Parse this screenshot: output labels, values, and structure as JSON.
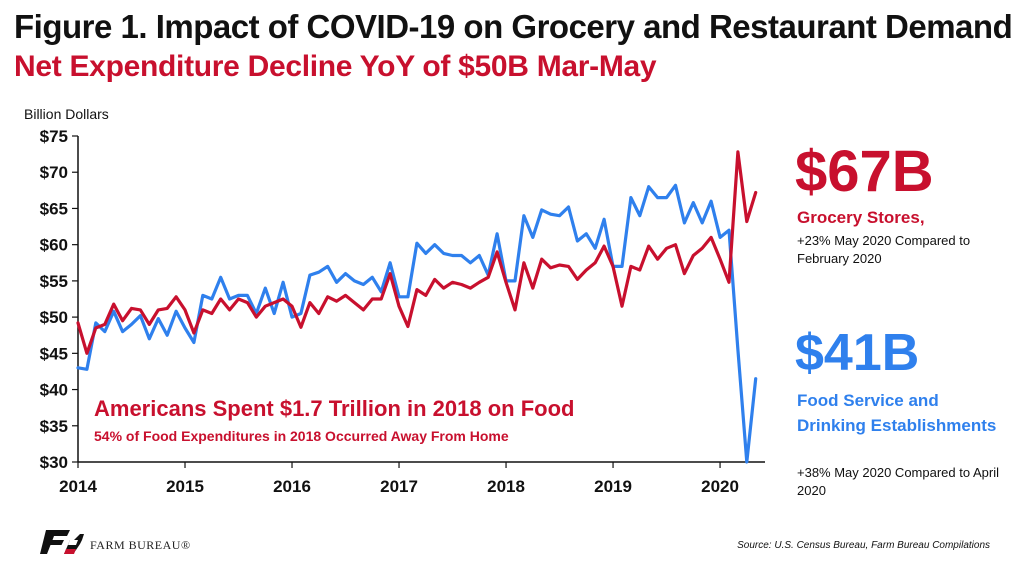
{
  "title": "Figure 1. Impact of COVID-19 on Grocery and Restaurant Demand",
  "subtitle": "Net Expenditure Decline YoY of $50B Mar-May",
  "colors": {
    "grocery": "#c8102e",
    "food_service": "#2f80ed",
    "title": "#111111"
  },
  "chart_data": {
    "type": "line",
    "ylabel": "Billion Dollars",
    "xlabel": "",
    "ylim": [
      30,
      75
    ],
    "yticks": [
      30,
      35,
      40,
      45,
      50,
      55,
      60,
      65,
      70,
      75
    ],
    "ytick_labels": [
      "$30",
      "$35",
      "$40",
      "$45",
      "$50",
      "$55",
      "$60",
      "$65",
      "$70",
      "$75"
    ],
    "xlim": [
      2014,
      2020.42
    ],
    "xticks": [
      2014,
      2015,
      2016,
      2017,
      2018,
      2019,
      2020
    ],
    "xtick_labels": [
      "2014",
      "2015",
      "2016",
      "2017",
      "2018",
      "2019",
      "2020"
    ],
    "grid": false,
    "series": [
      {
        "name": "Grocery Stores",
        "color": "#c8102e",
        "start_year": 2014,
        "points_per_year": 12,
        "values": [
          49.2,
          45.0,
          48.5,
          49.0,
          51.8,
          49.5,
          51.2,
          51.0,
          49.0,
          51.0,
          51.2,
          52.8,
          51.0,
          47.8,
          51.0,
          50.5,
          52.5,
          51.0,
          52.5,
          52.0,
          50.0,
          51.5,
          52.0,
          52.5,
          51.5,
          48.6,
          52.0,
          50.5,
          52.8,
          52.2,
          53.0,
          52.0,
          51.0,
          52.5,
          52.5,
          56.0,
          51.5,
          48.7,
          53.8,
          53.0,
          55.2,
          54.0,
          54.8,
          54.5,
          54.0,
          54.8,
          55.5,
          59.0,
          54.8,
          51.0,
          57.5,
          54.0,
          58.0,
          56.8,
          57.2,
          57.0,
          55.2,
          56.5,
          57.5,
          59.8,
          57.0,
          51.5,
          57.0,
          56.5,
          59.8,
          58.0,
          59.5,
          60.0,
          56.0,
          58.5,
          59.5,
          61.0,
          58.0,
          54.8,
          72.8,
          63.2,
          67.2
        ]
      },
      {
        "name": "Food Service and Drinking Establishments",
        "color": "#2f80ed",
        "start_year": 2014,
        "points_per_year": 12,
        "values": [
          43.0,
          42.8,
          49.2,
          48.0,
          50.8,
          48.0,
          49.0,
          50.2,
          47.0,
          49.8,
          47.5,
          50.8,
          48.5,
          46.5,
          53.0,
          52.5,
          55.5,
          52.5,
          53.0,
          53.0,
          50.5,
          54.0,
          50.5,
          54.8,
          50.0,
          50.5,
          55.8,
          56.2,
          57.0,
          54.8,
          56.0,
          55.0,
          54.5,
          55.5,
          53.5,
          57.5,
          52.8,
          52.8,
          60.2,
          58.8,
          60.0,
          58.8,
          58.5,
          58.5,
          57.5,
          58.5,
          55.8,
          61.5,
          55.0,
          55.0,
          64.0,
          61.0,
          64.8,
          64.2,
          64.0,
          65.2,
          60.5,
          61.5,
          59.5,
          63.5,
          57.0,
          57.0,
          66.5,
          64.0,
          68.0,
          66.5,
          66.5,
          68.2,
          63.0,
          65.8,
          63.0,
          66.0,
          61.0,
          62.0,
          45.5,
          30.0,
          41.5
        ]
      }
    ]
  },
  "annotations": {
    "grocery": {
      "value": "$67B",
      "label": "Grocery Stores,",
      "note": "+23% May 2020 Compared to February 2020"
    },
    "food_service": {
      "value": "$41B",
      "label": "Food Service and Drinking Establishments",
      "note": "+38% May 2020 Compared to April 2020"
    },
    "headline": "Americans Spent $1.7 Trillion in 2018 on Food",
    "subline": "54% of Food Expenditures in 2018 Occurred Away From Home"
  },
  "footer": {
    "logo_icon": "farm-bureau-logo-icon",
    "brand": "FARM BUREAU®",
    "source": "Source: U.S. Census Bureau, Farm Bureau Compilations"
  }
}
